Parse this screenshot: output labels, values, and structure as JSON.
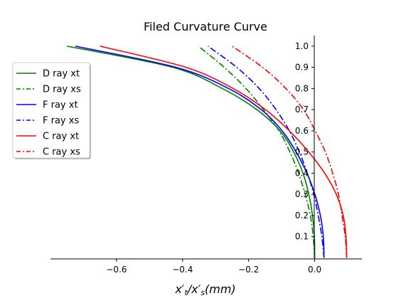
{
  "chart_data": {
    "type": "line",
    "title": "Filed Curvature Curve",
    "xlabel": "x′t/x′s(mm)",
    "ylabel": "",
    "xlim": [
      -0.8,
      0.143
    ],
    "ylim": [
      -0.005,
      1.05
    ],
    "xticks": [
      -0.6,
      -0.4,
      -0.2,
      0.0
    ],
    "xtick_labels": [
      "−0.6",
      "−0.4",
      "−0.2",
      "0.0"
    ],
    "yticks": [
      0.1,
      0.2,
      0.3,
      0.4,
      0.5,
      0.6,
      0.7,
      0.8,
      0.9,
      1.0
    ],
    "ytick_labels": [
      "0.1",
      "0.2",
      "0.3",
      "0.4",
      "0.5",
      "0.6",
      "0.7",
      "0.8",
      "0.9",
      "1.0"
    ],
    "grid": false,
    "legend_position": "upper-left",
    "series": [
      {
        "name": "D ray xt",
        "color": "#008000",
        "dash": "solid",
        "points": [
          [
            0.0,
            0.0
          ],
          [
            -0.00075,
            0.1
          ],
          [
            -0.0066,
            0.2
          ],
          [
            -0.0177,
            0.3
          ],
          [
            -0.0354,
            0.4
          ],
          [
            -0.0636,
            0.5
          ],
          [
            -0.105,
            0.6
          ],
          [
            -0.175,
            0.7
          ],
          [
            -0.28,
            0.8
          ],
          [
            -0.43,
            0.9
          ],
          [
            -0.75,
            1.0
          ]
        ]
      },
      {
        "name": "D ray xs",
        "color": "#008000",
        "dash": "dashdot",
        "points": [
          [
            0.0,
            0.0
          ],
          [
            -0.0044,
            0.1
          ],
          [
            -0.0133,
            0.2
          ],
          [
            -0.0288,
            0.3
          ],
          [
            -0.0487,
            0.4
          ],
          [
            -0.075,
            0.5
          ],
          [
            -0.108,
            0.6
          ],
          [
            -0.155,
            0.7
          ],
          [
            -0.208,
            0.8
          ],
          [
            -0.274,
            0.9
          ],
          [
            -0.352,
            1.0
          ]
        ]
      },
      {
        "name": "F ray xt",
        "color": "#0000ff",
        "dash": "solid",
        "points": [
          [
            0.0284,
            0.0
          ],
          [
            0.0262,
            0.1
          ],
          [
            0.0173,
            0.2
          ],
          [
            0.0007,
            0.3
          ],
          [
            -0.0235,
            0.4
          ],
          [
            -0.0562,
            0.5
          ],
          [
            -0.0985,
            0.6
          ],
          [
            -0.162,
            0.7
          ],
          [
            -0.261,
            0.8
          ],
          [
            -0.42,
            0.9
          ],
          [
            -0.725,
            1.0
          ]
        ]
      },
      {
        "name": "F ray xs",
        "color": "#0000ff",
        "dash": "dashdot",
        "points": [
          [
            0.0284,
            0.0
          ],
          [
            0.0218,
            0.1
          ],
          [
            0.0107,
            0.2
          ],
          [
            -0.0025,
            0.3
          ],
          [
            -0.0224,
            0.4
          ],
          [
            -0.0465,
            0.5
          ],
          [
            -0.0767,
            0.6
          ],
          [
            -0.117,
            0.7
          ],
          [
            -0.168,
            0.8
          ],
          [
            -0.236,
            0.9
          ],
          [
            -0.323,
            1.0
          ]
        ]
      },
      {
        "name": "C ray xt",
        "color": "#ff0000",
        "dash": "solid",
        "points": [
          [
            0.097,
            0.0
          ],
          [
            0.0948,
            0.1
          ],
          [
            0.0865,
            0.2
          ],
          [
            0.0655,
            0.3
          ],
          [
            0.0303,
            0.4
          ],
          [
            -0.018,
            0.5
          ],
          [
            -0.0765,
            0.6
          ],
          [
            -0.149,
            0.7
          ],
          [
            -0.247,
            0.8
          ],
          [
            -0.39,
            0.9
          ],
          [
            -0.65,
            1.0
          ]
        ]
      },
      {
        "name": "C ray xs",
        "color": "#ff0000",
        "dash": "dashdot",
        "points": [
          [
            0.097,
            0.0
          ],
          [
            0.0926,
            0.1
          ],
          [
            0.0828,
            0.2
          ],
          [
            0.0721,
            0.3
          ],
          [
            0.0545,
            0.4
          ],
          [
            0.0324,
            0.5
          ],
          [
            0.0015,
            0.6
          ],
          [
            -0.0339,
            0.7
          ],
          [
            -0.0872,
            0.8
          ],
          [
            -0.158,
            0.9
          ],
          [
            -0.25,
            1.0
          ]
        ]
      }
    ]
  }
}
